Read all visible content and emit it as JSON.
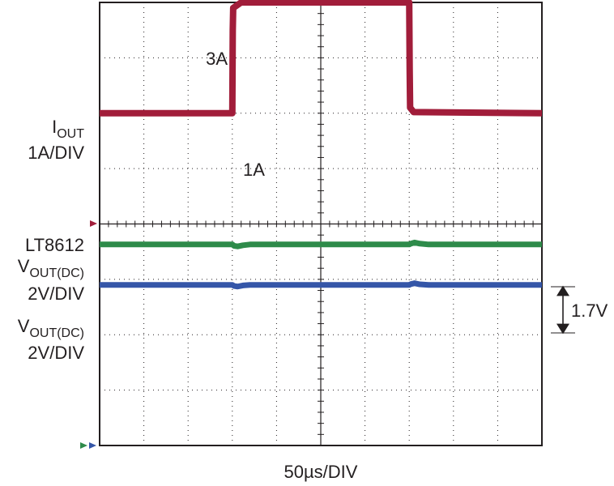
{
  "chart_data": {
    "type": "line",
    "title": "",
    "xlabel": "50µs/DIV",
    "ylabel": "",
    "x_unit": "µs",
    "xlim": [
      0,
      500
    ],
    "y_divisions": 8,
    "grid": true,
    "colors": {
      "iout": "#a11d3a",
      "vout_lt8612": "#2e8b4a",
      "vout_other": "#3556a8",
      "grid": "#231f20"
    },
    "channels": {
      "iout": {
        "label_main": "I",
        "label_sub": "OUT",
        "scale": "1A/DIV",
        "unit": "A",
        "zero_div": 3,
        "volts_per_div": 1,
        "points": [
          [
            0,
            1
          ],
          [
            150,
            1
          ],
          [
            150.5,
            2.5
          ],
          [
            151,
            2.9
          ],
          [
            160,
            3
          ],
          [
            350,
            3
          ],
          [
            350.5,
            1.8
          ],
          [
            351,
            1.1
          ],
          [
            355,
            1.02
          ],
          [
            500,
            1
          ]
        ]
      },
      "vout_lt8612": {
        "label_top": "LT8612",
        "label_main": "V",
        "label_sub": "OUT(DC)",
        "scale": "2V/DIV",
        "zero_div": 4.37,
        "volts_per_div": 2,
        "points": [
          [
            0,
            0
          ],
          [
            150,
            0
          ],
          [
            152,
            -0.05
          ],
          [
            156,
            -0.07
          ],
          [
            162,
            -0.03
          ],
          [
            170,
            0
          ],
          [
            350,
            0
          ],
          [
            352,
            0.03
          ],
          [
            356,
            0.07
          ],
          [
            362,
            0.03
          ],
          [
            372,
            0
          ],
          [
            500,
            0
          ]
        ]
      },
      "vout_other": {
        "label_main": "V",
        "label_sub": "OUT(DC)",
        "scale": "2V/DIV",
        "zero_div": 5.1,
        "volts_per_div": 2,
        "points": [
          [
            0,
            0
          ],
          [
            150,
            0
          ],
          [
            152,
            -0.04
          ],
          [
            156,
            -0.06
          ],
          [
            162,
            -0.02
          ],
          [
            170,
            0
          ],
          [
            350,
            0
          ],
          [
            352,
            0.03
          ],
          [
            356,
            0.06
          ],
          [
            362,
            0.02
          ],
          [
            372,
            0
          ],
          [
            500,
            0
          ]
        ]
      }
    },
    "annotations": {
      "iout_high": "3A",
      "iout_low": "1A",
      "offset": "1.7V"
    }
  }
}
